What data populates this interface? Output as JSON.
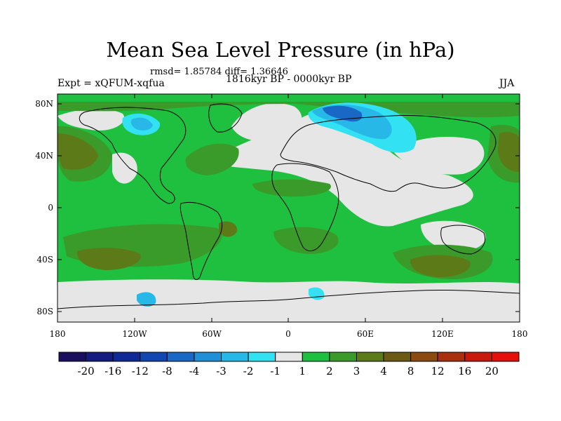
{
  "title": "Mean Sea Level Pressure (in hPa)",
  "subtitle": "rmsd= 1.85784 diff= 1.36646",
  "experiment": "Expt = xQFUM-xqfua",
  "period": "1816kyr BP - 0000kyr BP",
  "season": "JJA",
  "lat_ticks": [
    "80N",
    "40N",
    "0",
    "40S",
    "80S"
  ],
  "lon_ticks": [
    "180",
    "120W",
    "60W",
    "0",
    "60E",
    "120E",
    "180"
  ],
  "colorbar": {
    "labels": [
      "-20",
      "-16",
      "-12",
      "-8",
      "-4",
      "-3",
      "-2",
      "-1",
      "1",
      "2",
      "3",
      "4",
      "8",
      "12",
      "16",
      "20"
    ],
    "colors": [
      "#1a0f5e",
      "#141c82",
      "#0f2a96",
      "#1246b0",
      "#1a68c6",
      "#1f90d8",
      "#27b8e8",
      "#33e2f2",
      "#e6e6e6",
      "#1fbf3f",
      "#3a9b2a",
      "#5c7a18",
      "#6a5a14",
      "#8a4a10",
      "#a8300d",
      "#c81a0c",
      "#e5100a"
    ]
  },
  "colors": {
    "background": "#ffffff",
    "neutral": "#e6e6e6",
    "positive_1_2": "#1fbf3f",
    "positive_2_3": "#3a9b2a",
    "positive_3_4": "#5c7a18",
    "negative": "#27b8e8"
  }
}
